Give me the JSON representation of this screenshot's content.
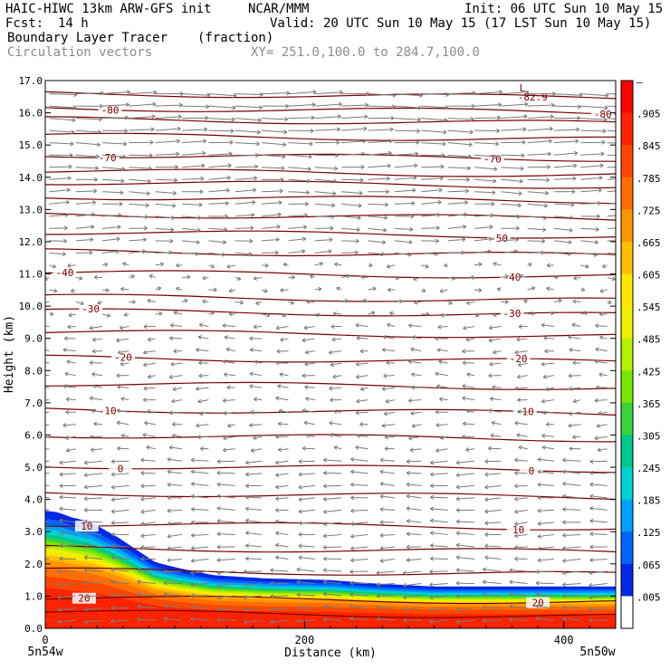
{
  "header": {
    "model": "HAIC-HIWC 13km ARW-GFS init",
    "org": "NCAR/MMM",
    "init": "Init: 06 UTC Sun 10 May 15",
    "fcst_label": "Fcst:",
    "fcst_value": "14 h",
    "valid": "Valid: 20 UTC Sun 10 May 15 (17 LST Sun 10 May 15)",
    "field": "Boundary Layer Tracer",
    "units": "(fraction)",
    "field2": "Circulation vectors",
    "xy": "XY= 251.0,100.0 to 284.7,100.0"
  },
  "chart_data": {
    "type": "heatmap",
    "xlabel": "Distance (km)",
    "ylabel": "Height (km)",
    "xlim": [
      0,
      440
    ],
    "ylim": [
      0,
      17
    ],
    "x_ticks": [
      "0",
      "200",
      "400"
    ],
    "y_ticks": [
      "0.0",
      "1.0",
      "2.0",
      "3.0",
      "4.0",
      "5.0",
      "6.0",
      "7.0",
      "8.0",
      "9.0",
      "10.0",
      "11.0",
      "12.0",
      "13.0",
      "14.0",
      "15.0",
      "16.0",
      "17.0"
    ],
    "x_left_label": "5n54w",
    "x_right_label": "5n50w",
    "colorbar": {
      "labels": [
        "–",
        ".905",
        ".845",
        ".785",
        ".725",
        ".665",
        ".605",
        ".545",
        ".485",
        ".425",
        ".365",
        ".305",
        ".245",
        ".185",
        ".125",
        ".065",
        ".005"
      ],
      "colors": [
        "#ff0000",
        "#ff2300",
        "#ff4600",
        "#ff6e00",
        "#ff9600",
        "#ffbe00",
        "#ffe600",
        "#f0f000",
        "#b4f000",
        "#78e600",
        "#3cd23c",
        "#00c88c",
        "#00d2d2",
        "#00a0ff",
        "#0064ff",
        "#0028e6",
        "#ffffff"
      ]
    },
    "tracer_top_km": [
      [
        0,
        3.65
      ],
      [
        10,
        3.6
      ],
      [
        20,
        3.45
      ],
      [
        35,
        3.3
      ],
      [
        55,
        2.85
      ],
      [
        70,
        2.45
      ],
      [
        85,
        2.05
      ],
      [
        105,
        1.85
      ],
      [
        130,
        1.65
      ],
      [
        170,
        1.55
      ],
      [
        220,
        1.5
      ],
      [
        250,
        1.4
      ],
      [
        300,
        1.3
      ],
      [
        360,
        1.3
      ],
      [
        440,
        1.3
      ]
    ],
    "temperature_contours": [
      {
        "label": "-80",
        "height_km": 16.15,
        "label_x_km": [
          50,
          430
        ]
      },
      {
        "label": "-70",
        "height_km": 14.7,
        "label_x_km": [
          48,
          345
        ]
      },
      {
        "label": "-50",
        "height_km": 12.3,
        "label_x_km": [
          350
        ]
      },
      {
        "label": "-40",
        "height_km": 11.05,
        "label_x_km": [
          15,
          360
        ]
      },
      {
        "label": "-30",
        "height_km": 9.85,
        "label_x_km": [
          35,
          360
        ]
      },
      {
        "label": "-20",
        "height_km": 8.4,
        "label_x_km": [
          60,
          365
        ]
      },
      {
        "label": "-10",
        "height_km": 6.8,
        "label_x_km": [
          48,
          370
        ]
      },
      {
        "label": "0",
        "height_km": 5.05,
        "label_x_km": [
          58,
          375
        ]
      },
      {
        "label": "10",
        "height_km": 3.25,
        "label_x_km": [
          32,
          365
        ]
      },
      {
        "label": "20",
        "height_km": 0.95,
        "label_x_km": [
          30,
          380
        ]
      }
    ],
    "extra_contours_km": [
      0.5,
      1.8,
      2.5,
      4.2,
      6.0,
      7.6,
      9.2,
      10.3,
      11.7,
      12.85,
      13.4,
      13.85,
      14.2,
      15.3,
      15.8,
      16.6
    ],
    "max_label": "-82.9",
    "max_marker": "L"
  }
}
